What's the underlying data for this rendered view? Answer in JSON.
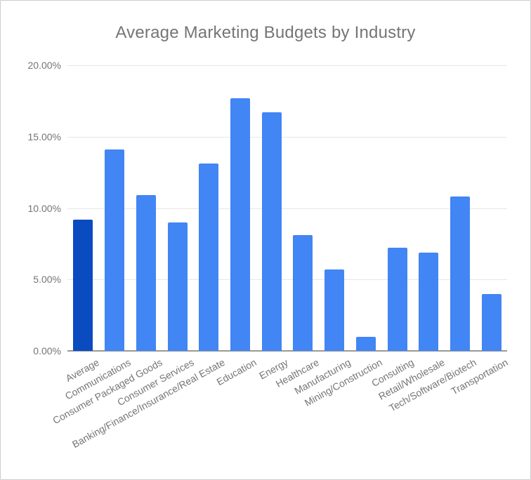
{
  "window": {
    "background_color": "#ffffff",
    "border_color": "#cccccc"
  },
  "chart_data": {
    "type": "bar",
    "title": "Average Marketing Budgets by Industry",
    "categories": [
      "Average",
      "Communications",
      "Consumer Packaged Goods",
      "Consumer Services",
      "Banking/Finance/Insurance/Real Estate",
      "Education",
      "Energy",
      "Healthcare",
      "Manufacturing",
      "Mining/Construction",
      "Consulting",
      "Retail/Wholesale",
      "Tech/Software/Biotech",
      "Transportation"
    ],
    "values": [
      9.2,
      14.1,
      10.9,
      9.0,
      13.1,
      17.7,
      16.7,
      8.1,
      5.7,
      1.0,
      7.2,
      6.9,
      10.8,
      4.0
    ],
    "value_unit": "%",
    "xlabel": "",
    "ylabel": "",
    "ylim": [
      0,
      20
    ],
    "ytick_values": [
      0,
      5,
      10,
      15,
      20
    ],
    "ytick_labels": [
      "0.00%",
      "5.00%",
      "10.00%",
      "15.00%",
      "20.00%"
    ],
    "grid": true,
    "legend": "none",
    "x_label_rotation_deg": -29,
    "colors": {
      "bar": "#4285f4",
      "highlight_bar": "#0b4bc0",
      "title_text": "#757575",
      "tick_text": "#757575",
      "gridline": "#e6e6e6",
      "axis_line": "#999999"
    },
    "highlight_bar_index": 0
  }
}
